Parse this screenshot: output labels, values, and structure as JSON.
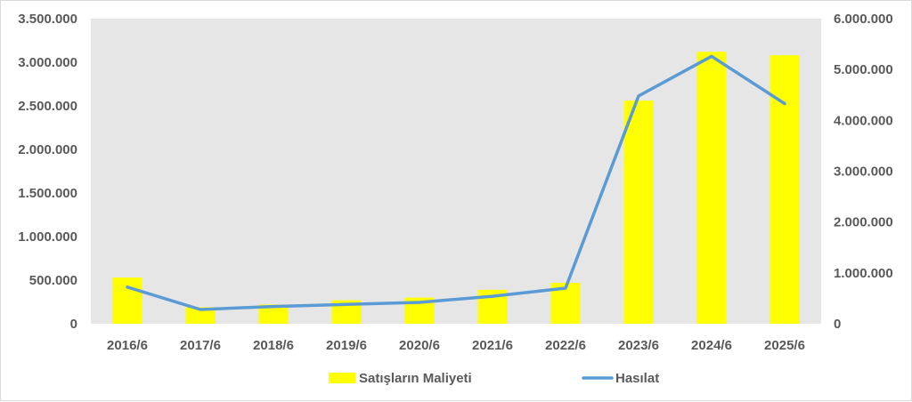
{
  "chart_data": {
    "type": "bar",
    "categories": [
      "2016/6",
      "2017/6",
      "2018/6",
      "2019/6",
      "2020/6",
      "2021/6",
      "2022/6",
      "2023/6",
      "2024/6",
      "2025/6"
    ],
    "series": [
      {
        "name": "Satışların Maliyeti",
        "kind": "bar",
        "axis": "left",
        "color": "#FFFF00",
        "values": [
          530000,
          190000,
          220000,
          270000,
          300000,
          390000,
          470000,
          2560000,
          3120000,
          3080000
        ]
      },
      {
        "name": "Hasılat",
        "kind": "line",
        "axis": "right",
        "color": "#5B9BD5",
        "values": [
          720000,
          280000,
          340000,
          380000,
          420000,
          540000,
          700000,
          4480000,
          5260000,
          4330000
        ]
      }
    ],
    "left_axis": {
      "ylim": [
        0,
        3500000
      ],
      "ticks": [
        0,
        500000,
        1000000,
        1500000,
        2000000,
        2500000,
        3000000,
        3500000
      ],
      "tick_labels": [
        "0",
        "500.000",
        "1.000.000",
        "1.500.000",
        "2.000.000",
        "2.500.000",
        "3.000.000",
        "3.500.000"
      ]
    },
    "right_axis": {
      "ylim": [
        0,
        6000000
      ],
      "ticks": [
        0,
        1000000,
        2000000,
        3000000,
        4000000,
        5000000,
        6000000
      ],
      "tick_labels": [
        "0",
        "1.000.000",
        "2.000.000",
        "3.000.000",
        "4.000.000",
        "5.000.000",
        "6.000.000"
      ]
    },
    "plot_background": "#E6E6E6",
    "grid": false,
    "legend_position": "bottom"
  }
}
